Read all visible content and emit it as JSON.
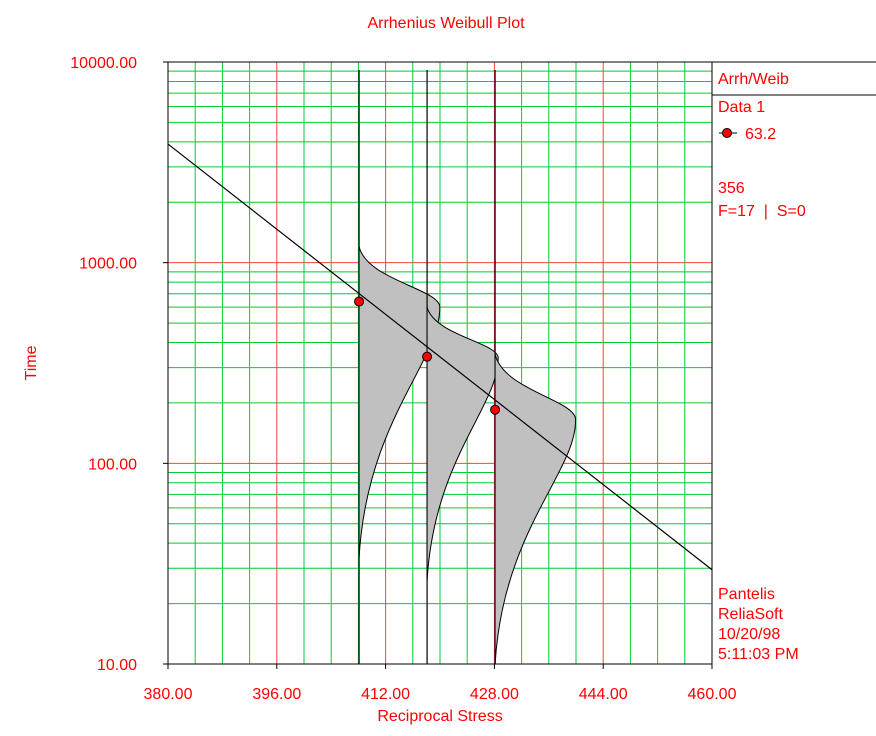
{
  "chart_data": {
    "type": "scatter",
    "title": "Arrhenius Weibull Plot",
    "xlabel": "Reciprocal Stress",
    "ylabel": "Time",
    "xlim": [
      380,
      460
    ],
    "ylim": [
      10,
      10000
    ],
    "y_scale": "log",
    "x_ticks": [
      "380.00",
      "396.00",
      "412.00",
      "428.00",
      "444.00",
      "460.00"
    ],
    "y_ticks": [
      "10.00",
      "100.00",
      "1000.00",
      "10000.00"
    ],
    "grid": true,
    "legend_position": "right",
    "points": [
      {
        "x": 408.1,
        "y": 640
      },
      {
        "x": 418.1,
        "y": 340
      },
      {
        "x": 428.1,
        "y": 185
      }
    ],
    "fit_line": {
      "x": [
        380,
        460
      ],
      "y": [
        3900,
        29.5
      ]
    },
    "pdf_curves": [
      {
        "x": 408.1,
        "mode_y": 600,
        "top_y": 1200,
        "bottom_y": 34
      },
      {
        "x": 418.1,
        "mode_y": 335,
        "top_y": 600,
        "bottom_y": 26
      },
      {
        "x": 428.1,
        "mode_y": 165,
        "top_y": 350,
        "bottom_y": 10
      }
    ],
    "colors": {
      "text": "#ff0000",
      "major_grid": "#ff4040",
      "minor_grid": "#00cc33",
      "point_fill": "#ff0000",
      "pdf_fill": "#c0c0c0",
      "line": "#000000"
    }
  },
  "legend": {
    "model": "Arrh/Weib",
    "dataset": "Data 1",
    "marker_label": "63.2",
    "parameter": "356",
    "counts": "F=17  |  S=0",
    "author": "Pantelis",
    "company": "ReliaSoft",
    "date": "10/20/98",
    "time": "5:11:03 PM"
  }
}
